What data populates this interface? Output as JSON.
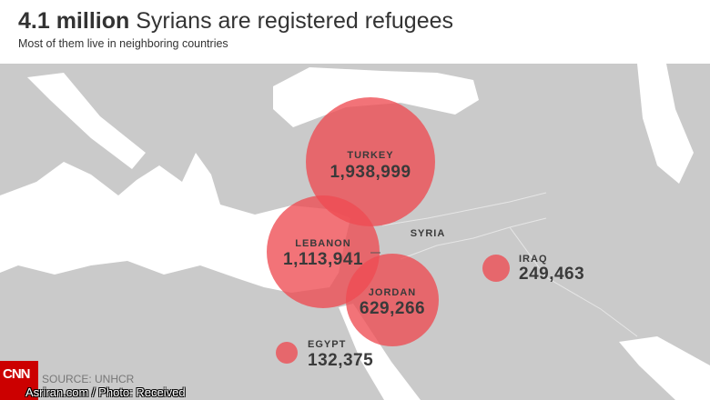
{
  "header": {
    "title_bold": "4.1 million",
    "title_rest": " Syrians are registered refugees",
    "subtitle": "Most of them live in neighboring countries"
  },
  "map": {
    "land_color": "#cacaca",
    "sea_color": "#ffffff",
    "bubble_color": "#ee4b52",
    "unlabeled_country": "SYRIA",
    "countries": [
      {
        "name": "TURKEY",
        "value": "1,938,999",
        "refugees": 1938999
      },
      {
        "name": "LEBANON",
        "value": "1,113,941",
        "refugees": 1113941
      },
      {
        "name": "JORDAN",
        "value": "629,266",
        "refugees": 629266
      },
      {
        "name": "IRAQ",
        "value": "249,463",
        "refugees": 249463
      },
      {
        "name": "EGYPT",
        "value": "132,375",
        "refugees": 132375
      }
    ]
  },
  "footer": {
    "source": "SOURCE: UNHCR",
    "logo_text": "CNN",
    "credit": "Asriran.com / Photo: Received"
  }
}
